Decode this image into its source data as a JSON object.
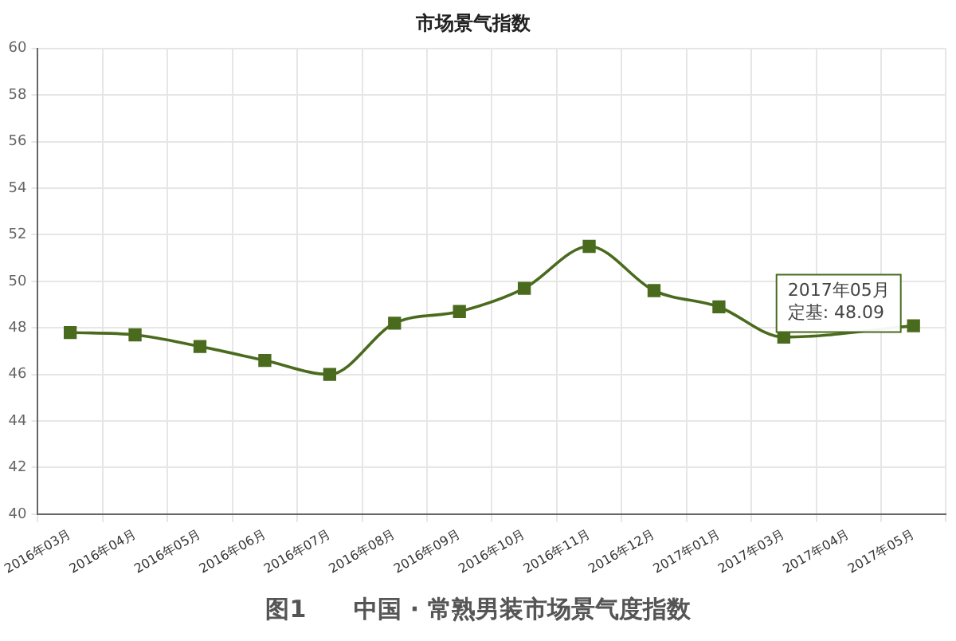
{
  "chart_data": {
    "type": "line",
    "title": "市场景气指数",
    "categories": [
      "2016年03月",
      "2016年04月",
      "2016年05月",
      "2016年06月",
      "2016年07月",
      "2016年08月",
      "2016年09月",
      "2016年10月",
      "2016年11月",
      "2016年12月",
      "2017年01月",
      "2017年03月",
      "2017年04月",
      "2017年05月"
    ],
    "series": [
      {
        "color": "#4a6b1e",
        "values": [
          47.8,
          47.7,
          47.2,
          46.6,
          46.0,
          48.2,
          48.7,
          49.7,
          51.5,
          49.6,
          48.9,
          47.6,
          null,
          48.09
        ]
      }
    ],
    "ylim": [
      40,
      60
    ],
    "yticks": [
      40,
      42,
      44,
      46,
      48,
      50,
      52,
      54,
      56,
      58,
      60
    ],
    "grid": true,
    "marker": "square",
    "legend": false,
    "annotations": [
      {
        "text": "2017年05月",
        "x": "2017年05月",
        "y": 48.09
      },
      {
        "text": "定基: 48.09",
        "x": "2017年05月",
        "y": 48.09
      },
      "图1　　中国 · 常熟男装市场景气度指数"
    ]
  }
}
